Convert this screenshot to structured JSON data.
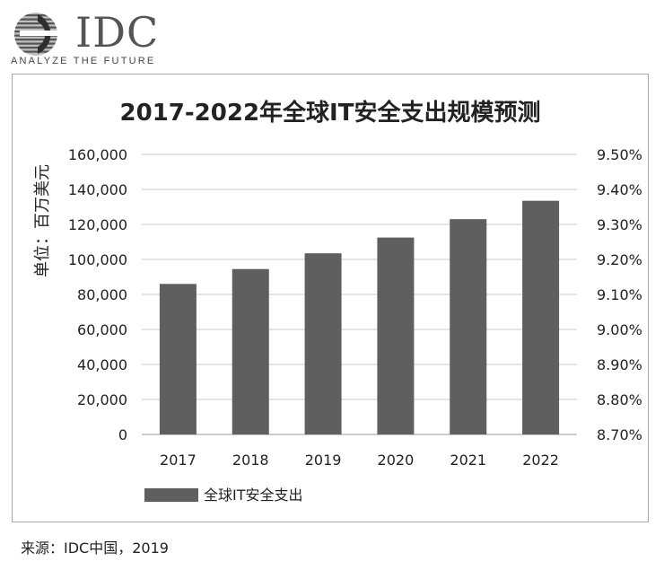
{
  "logo": {
    "wordmark": "IDC",
    "tagline": "ANALYZE THE FUTURE"
  },
  "source": "来源：IDC中国，2019",
  "colors": {
    "bar": "#5f5f5f",
    "grid": "#c8c8c8",
    "text": "#222222",
    "frame": "#aaaaaa"
  },
  "chart_data": {
    "type": "bar",
    "title": "2017-2022年全球IT安全支出规模预测",
    "ylabel": "单位：百万美元",
    "xlabel": "",
    "categories": [
      "2017",
      "2018",
      "2019",
      "2020",
      "2021",
      "2022"
    ],
    "series": [
      {
        "name": "全球IT安全支出",
        "values": [
          86000,
          94500,
          103500,
          112500,
          123000,
          133500
        ]
      }
    ],
    "ylim": [
      0,
      160000
    ],
    "yticks": [
      0,
      20000,
      40000,
      60000,
      80000,
      100000,
      120000,
      140000,
      160000
    ],
    "ytick_labels": [
      "0",
      "20,000",
      "40,000",
      "60,000",
      "80,000",
      "100,000",
      "120,000",
      "140,000",
      "160,000"
    ],
    "y2lim": [
      8.7,
      9.5
    ],
    "y2tick_labels": [
      "8.70%",
      "8.80%",
      "8.90%",
      "9.00%",
      "9.10%",
      "9.20%",
      "9.30%",
      "9.40%",
      "9.50%"
    ],
    "grid": true,
    "legend_position": "bottom-left"
  }
}
